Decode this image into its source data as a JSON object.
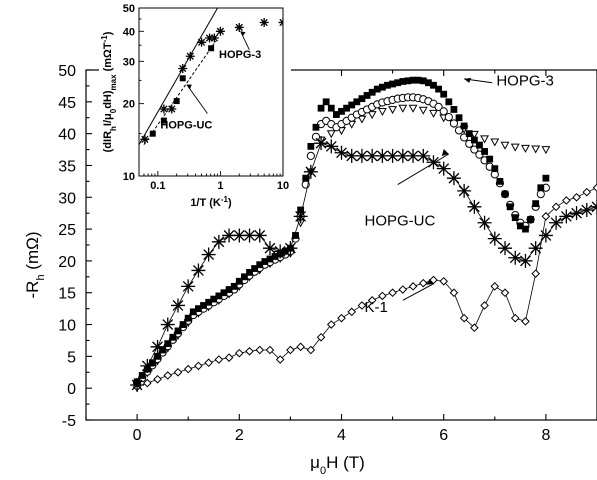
{
  "chart_data": [
    {
      "type": "scatter",
      "title": "",
      "xlabel": {
        "main": "μ",
        "sub1": "0",
        "rest": "H (T)"
      },
      "ylabel": {
        "main": "-R",
        "sub1": "h",
        "rest": " (mΩ)"
      },
      "xlim": [
        -1,
        9
      ],
      "ylim": [
        -5,
        50
      ],
      "xticks": [
        "0",
        "2",
        "4",
        "6",
        "8"
      ],
      "yticks": [
        "-5",
        "0",
        "5",
        "10",
        "15",
        "20",
        "25",
        "30",
        "35",
        "40",
        "45",
        "50"
      ],
      "grid": false,
      "legend": "none",
      "annotations": [
        {
          "text": "HOPG-3",
          "at": [
            5.1,
            48.5
          ]
        },
        {
          "text": "HOPG-UC",
          "at": [
            5.8,
            32.5
          ]
        },
        {
          "text": "K-1",
          "at": [
            5.7,
            17.5
          ]
        }
      ],
      "series": [
        {
          "name": "HOPG-3",
          "marker": "square-filled",
          "x": [
            0,
            0.1,
            0.2,
            0.3,
            0.4,
            0.5,
            0.6,
            0.7,
            0.8,
            0.9,
            1.0,
            1.1,
            1.2,
            1.3,
            1.4,
            1.5,
            1.6,
            1.7,
            1.8,
            1.9,
            2.0,
            2.1,
            2.2,
            2.3,
            2.4,
            2.5,
            2.6,
            2.7,
            2.8,
            2.9,
            3.0,
            3.1,
            3.2,
            3.3,
            3.4,
            3.5,
            3.6,
            3.7,
            3.8,
            3.9,
            4.0,
            4.1,
            4.2,
            4.3,
            4.4,
            4.5,
            4.6,
            4.7,
            4.8,
            4.9,
            5.0,
            5.1,
            5.2,
            5.3,
            5.4,
            5.5,
            5.6,
            5.7,
            5.8,
            5.9,
            6.0,
            6.1,
            6.2,
            6.3,
            6.4,
            6.5,
            6.6,
            6.7,
            6.8,
            6.9,
            7.0,
            7.1,
            7.2,
            7.3,
            7.4,
            7.5,
            7.6,
            7.7,
            7.8,
            7.9,
            8.0
          ],
          "y": [
            1.0,
            2.0,
            3.0,
            4.0,
            5.0,
            6.0,
            7.0,
            8.0,
            9.0,
            10.0,
            11.0,
            12.0,
            12.5,
            13.0,
            13.5,
            14.0,
            14.5,
            15.0,
            15.5,
            16.0,
            16.8,
            17.5,
            18.2,
            18.8,
            19.4,
            19.9,
            20.3,
            20.7,
            21.1,
            21.5,
            22.0,
            24.0,
            28.0,
            33.0,
            38.0,
            41.0,
            44.0,
            45.0,
            44.0,
            43.0,
            43.5,
            44.0,
            44.5,
            45.0,
            45.5,
            46.0,
            46.5,
            47.0,
            47.3,
            47.6,
            47.8,
            48.0,
            48.2,
            48.3,
            48.4,
            48.4,
            48.3,
            48.0,
            47.6,
            47.0,
            46.2,
            45.0,
            43.8,
            42.5,
            41.2,
            40.0,
            39.0,
            38.2,
            37.2,
            36.0,
            34.5,
            32.5,
            30.5,
            28.5,
            26.8,
            25.5,
            25.0,
            26.5,
            29.0,
            31.5,
            33.0
          ]
        },
        {
          "name": "",
          "marker": "circle-open",
          "x": [
            0,
            0.1,
            0.2,
            0.3,
            0.4,
            0.5,
            0.6,
            0.7,
            0.8,
            0.9,
            1.0,
            1.1,
            1.2,
            1.3,
            1.4,
            1.5,
            1.6,
            1.7,
            1.8,
            1.9,
            2.0,
            2.1,
            2.2,
            2.3,
            2.4,
            2.5,
            2.6,
            2.7,
            2.8,
            2.9,
            3.0,
            3.1,
            3.2,
            3.3,
            3.4,
            3.5,
            3.6,
            3.7,
            3.8,
            3.9,
            4.0,
            4.1,
            4.2,
            4.3,
            4.4,
            4.5,
            4.6,
            4.7,
            4.8,
            4.9,
            5.0,
            5.1,
            5.2,
            5.3,
            5.4,
            5.5,
            5.6,
            5.7,
            5.8,
            5.9,
            6.0,
            6.1,
            6.2,
            6.3,
            6.4,
            6.5,
            6.6,
            6.7,
            6.8,
            6.9,
            7.0,
            7.1,
            7.2,
            7.3,
            7.4,
            7.5,
            7.6,
            7.7,
            7.8,
            7.9,
            8.0
          ],
          "y": [
            0.8,
            1.6,
            2.6,
            3.6,
            4.6,
            5.6,
            6.6,
            7.6,
            8.6,
            9.6,
            10.6,
            11.5,
            12.0,
            12.5,
            13.0,
            13.5,
            14.0,
            14.5,
            15.0,
            15.5,
            16.3,
            17.0,
            17.7,
            18.3,
            18.9,
            19.4,
            19.8,
            20.2,
            20.6,
            21.0,
            21.5,
            23.5,
            27.0,
            32.0,
            36.5,
            39.5,
            41.5,
            42.0,
            41.5,
            41.0,
            41.5,
            42.0,
            42.5,
            43.0,
            43.4,
            43.8,
            44.2,
            44.6,
            44.9,
            45.1,
            45.3,
            45.5,
            45.6,
            45.7,
            45.7,
            45.6,
            45.4,
            45.1,
            44.7,
            44.2,
            43.5,
            42.6,
            41.6,
            40.5,
            39.4,
            38.4,
            37.5,
            36.7,
            35.8,
            34.8,
            33.6,
            32.2,
            30.5,
            28.8,
            27.2,
            26.0,
            25.5,
            26.5,
            28.5,
            30.5,
            31.5
          ]
        },
        {
          "name": "",
          "marker": "triangle-down-open",
          "x": [
            0,
            0.2,
            0.4,
            0.6,
            0.8,
            1.0,
            1.2,
            1.4,
            1.6,
            1.8,
            2.0,
            2.2,
            2.4,
            2.6,
            2.8,
            3.0,
            3.2,
            3.4,
            3.6,
            3.8,
            4.0,
            4.2,
            4.4,
            4.6,
            4.8,
            5.0,
            5.2,
            5.4,
            5.6,
            5.8,
            6.0,
            6.2,
            6.4,
            6.6,
            6.8,
            7.0,
            7.2,
            7.4,
            7.6,
            7.8,
            8.0
          ],
          "y": [
            0.6,
            2.4,
            4.3,
            6.3,
            8.3,
            10.3,
            11.8,
            12.8,
            13.8,
            14.8,
            16.0,
            17.5,
            18.6,
            19.6,
            20.4,
            21.2,
            26.0,
            34.0,
            39.0,
            40.0,
            40.5,
            41.5,
            42.3,
            43.0,
            43.5,
            43.8,
            44.0,
            44.0,
            43.7,
            43.2,
            42.5,
            41.6,
            40.7,
            39.9,
            39.2,
            38.7,
            38.2,
            37.9,
            37.7,
            37.6,
            37.5
          ]
        },
        {
          "name": "HOPG-UC",
          "marker": "asterisk",
          "x": [
            0,
            0.2,
            0.4,
            0.6,
            0.8,
            1.0,
            1.2,
            1.4,
            1.6,
            1.8,
            2.0,
            2.2,
            2.4,
            2.6,
            2.8,
            3.0,
            3.2,
            3.4,
            3.6,
            3.8,
            4.0,
            4.2,
            4.4,
            4.6,
            4.8,
            5.0,
            5.2,
            5.4,
            5.6,
            5.8,
            6.0,
            6.2,
            6.4,
            6.6,
            6.8,
            7.0,
            7.2,
            7.4,
            7.6,
            7.8,
            8.0,
            8.2,
            8.4,
            8.6,
            8.8,
            9.0
          ],
          "y": [
            0.5,
            3.5,
            6.5,
            10.0,
            13.0,
            16.0,
            18.5,
            21.0,
            23.0,
            24.0,
            24.0,
            24.0,
            24.0,
            22.0,
            21.5,
            22.0,
            27.0,
            34.0,
            38.5,
            38.0,
            37.0,
            36.5,
            36.5,
            36.5,
            36.5,
            36.5,
            36.5,
            36.5,
            36.5,
            35.5,
            34.5,
            33.0,
            31.0,
            28.5,
            26.0,
            23.5,
            22.0,
            20.5,
            20.0,
            22.0,
            24.0,
            26.0,
            27.0,
            27.5,
            28.0,
            28.5
          ]
        },
        {
          "name": "K-1",
          "marker": "diamond-open",
          "x": [
            0,
            0.2,
            0.4,
            0.6,
            0.8,
            1.0,
            1.2,
            1.4,
            1.6,
            1.8,
            2.0,
            2.2,
            2.4,
            2.6,
            2.8,
            3.0,
            3.2,
            3.4,
            3.6,
            3.8,
            4.0,
            4.2,
            4.4,
            4.6,
            4.8,
            5.0,
            5.2,
            5.4,
            5.6,
            5.8,
            6.0,
            6.2,
            6.4,
            6.6,
            6.8,
            7.0,
            7.2,
            7.4,
            7.6,
            7.8,
            8.0,
            8.2,
            8.4,
            8.6,
            8.8,
            9.0
          ],
          "y": [
            0.2,
            0.8,
            1.4,
            2.0,
            2.5,
            3.0,
            3.5,
            4.0,
            4.5,
            4.8,
            5.5,
            5.8,
            6.0,
            6.0,
            4.5,
            6.0,
            6.5,
            6.0,
            8.0,
            10.0,
            11.0,
            12.0,
            13.0,
            13.8,
            14.5,
            15.0,
            15.5,
            16.0,
            16.5,
            17.0,
            16.8,
            15.0,
            11.0,
            9.5,
            13.0,
            16.0,
            15.0,
            11.0,
            10.5,
            18.0,
            27.0,
            28.5,
            29.5,
            30.0,
            30.8,
            31.5
          ]
        }
      ]
    },
    {
      "type": "scatter",
      "inset": true,
      "xscale": "log",
      "yscale": "log",
      "xlim": [
        0.05,
        10
      ],
      "ylim": [
        10,
        50
      ],
      "xlabel": {
        "main": "1/T (K",
        "sup1": "-1",
        "rest": ")"
      },
      "ylabel": {
        "main": "(dIR",
        "sub1": "h",
        "mid": "I/μ",
        "sub2": "0",
        "mid2": "dH)",
        "sub3": "max",
        "rest": " (mΩT",
        "sup": "-1",
        "end": ")"
      },
      "xticks": [
        "0.1",
        "1",
        "10"
      ],
      "yticks": [
        "10",
        "20",
        "30",
        "40",
        "50"
      ],
      "annotations": [
        {
          "text": "HOPG-3",
          "at": [
            3.0,
            36.0
          ]
        },
        {
          "text": "HOPG-UC",
          "at": [
            0.62,
            21.5
          ]
        }
      ],
      "series": [
        {
          "name": "HOPG-3",
          "marker": "asterisk",
          "x": [
            0.062,
            0.125,
            0.167,
            0.25,
            0.33,
            0.5,
            0.67,
            0.8,
            1.0,
            2.0,
            5.0,
            10.0
          ],
          "y": [
            14.2,
            19.0,
            19.0,
            28.0,
            31.5,
            36.0,
            37.5,
            37.5,
            40.0,
            41.5,
            43.5,
            43.5
          ]
        },
        {
          "name": "HOPG-UC",
          "marker": "square-filled",
          "x": [
            0.083,
            0.125,
            0.2,
            0.25,
            0.71
          ],
          "y": [
            15.0,
            17.0,
            20.5,
            25.5,
            34.0
          ]
        },
        {
          "name": "",
          "style": "solid",
          "x": [
            0.05,
            0.9
          ],
          "y": [
            13.5,
            50
          ]
        },
        {
          "name": "",
          "style": "dashed",
          "x": [
            0.06,
            0.85
          ],
          "y": [
            13.5,
            36.5
          ]
        }
      ]
    }
  ]
}
